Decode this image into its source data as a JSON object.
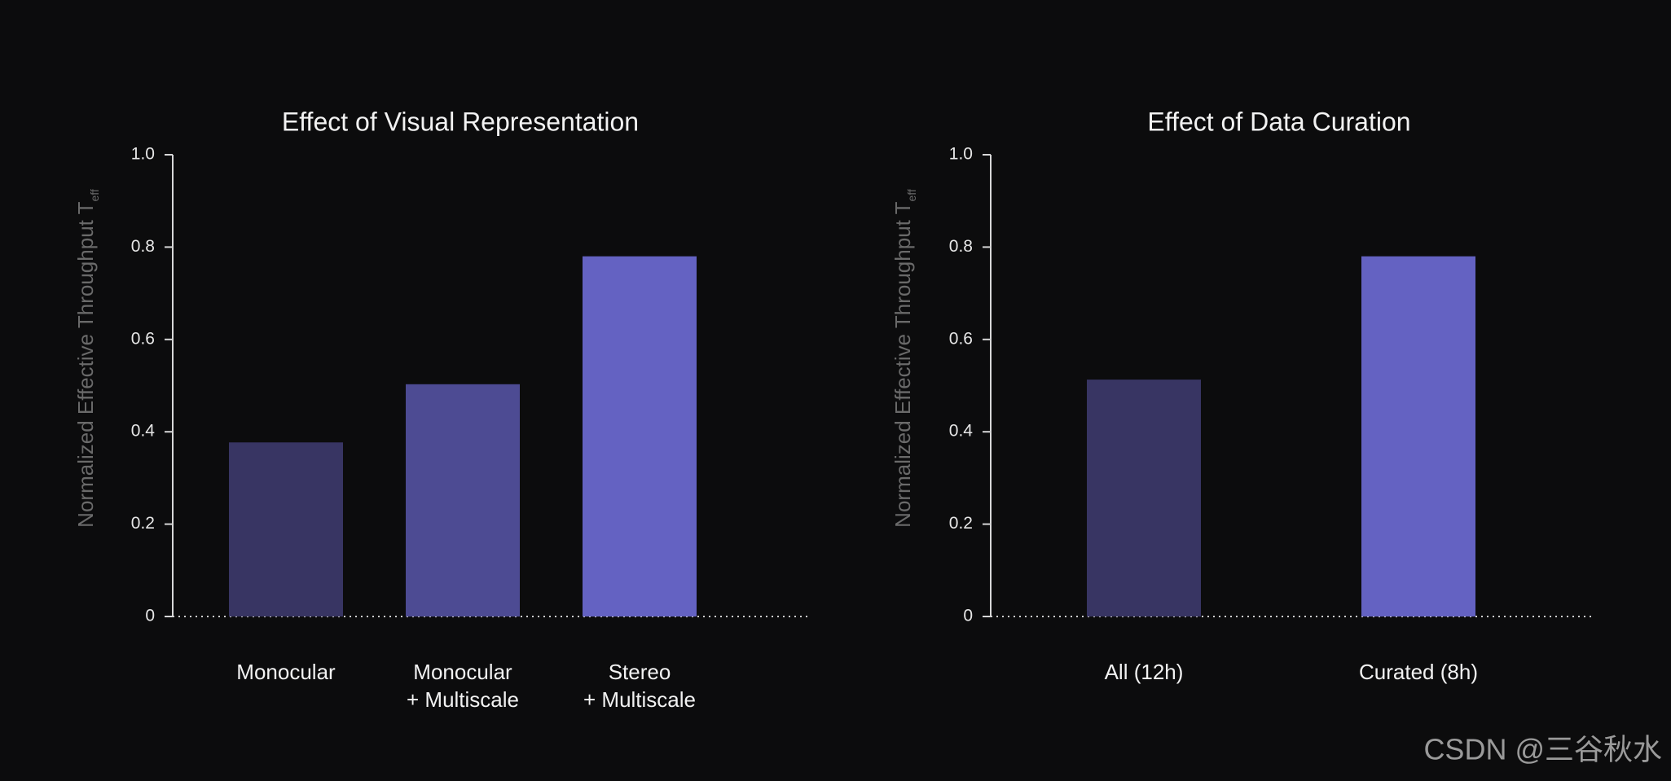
{
  "chart_data": [
    {
      "type": "bar",
      "title": "Effect of Visual Representation",
      "y_label": "Normalized Effective Throughput T",
      "y_label_subscript": "eff",
      "categories": [
        "Monocular",
        "Monocular\n+ Multiscale",
        "Stereo\n+ Multiscale"
      ],
      "values": [
        0.377,
        0.503,
        0.78
      ],
      "colors": [
        "#383563",
        "#4d4b93",
        "#6462c2"
      ],
      "ylim": [
        0,
        1
      ],
      "yticks": [
        0,
        0.2,
        0.4,
        0.6,
        0.8,
        {
          "value": 1,
          "label": "1.0"
        }
      ]
    },
    {
      "type": "bar",
      "title": "Effect of Data Curation",
      "y_label": "Normalized Effective Throughput T",
      "y_label_subscript": "eff",
      "categories": [
        "All (12h)",
        "Curated (8h)"
      ],
      "values": [
        0.513,
        0.78
      ],
      "colors": [
        "#383563",
        "#6462c2"
      ],
      "ylim": [
        0,
        1
      ],
      "yticks": [
        0,
        0.2,
        0.4,
        0.6,
        0.8,
        {
          "value": 1,
          "label": "1.0"
        }
      ]
    }
  ],
  "watermark": "CSDN @三谷秋水"
}
